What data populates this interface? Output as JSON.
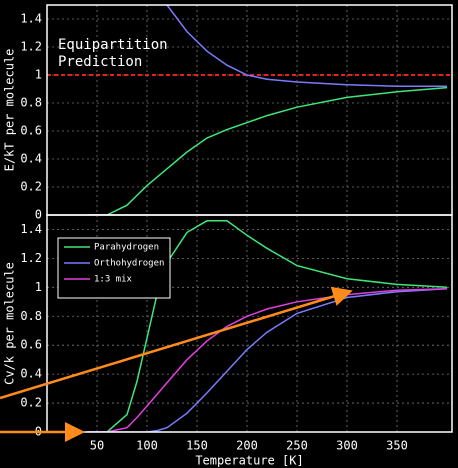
{
  "chart_data": [
    {
      "type": "line",
      "ylabel": "E/kT per molecule",
      "annotation": [
        "Equipartition",
        "Prediction"
      ],
      "annotation_color": "#e8321e",
      "reference_line": 1,
      "reference_color": "#e8201c",
      "x": [
        40,
        60,
        80,
        90,
        100,
        110,
        120,
        140,
        160,
        180,
        200,
        220,
        250,
        300,
        350,
        400
      ],
      "series": [
        {
          "color": "#3ee67a",
          "values": [
            0,
            0,
            0.07,
            0.14,
            0.21,
            0.27,
            0.33,
            0.45,
            0.55,
            0.61,
            0.66,
            0.71,
            0.77,
            0.84,
            0.88,
            0.91
          ]
        },
        {
          "color": "#7b7bff",
          "values": [
            null,
            null,
            null,
            null,
            null,
            null,
            1.5,
            1.31,
            1.17,
            1.07,
            1.0,
            0.97,
            0.95,
            0.93,
            0.92,
            0.92
          ]
        }
      ],
      "xlim": [
        0,
        405
      ],
      "xticks": [
        50,
        100,
        150,
        200,
        250,
        300,
        350
      ],
      "ylim": [
        0,
        1.5
      ],
      "yticks": [
        0,
        0.2,
        0.4,
        0.6,
        0.8,
        1,
        1.2,
        1.4
      ],
      "grid": true
    },
    {
      "type": "line",
      "ylabel": "Cv/k per molecule",
      "xlabel": "Temperature [K]",
      "x": [
        40,
        60,
        80,
        90,
        100,
        110,
        120,
        140,
        160,
        180,
        200,
        220,
        250,
        300,
        350,
        400
      ],
      "series": [
        {
          "name": "Parahydrogen",
          "color": "#3ee67a",
          "values": [
            0,
            0,
            0.12,
            0.35,
            0.65,
            0.95,
            1.17,
            1.38,
            1.46,
            1.46,
            1.36,
            1.27,
            1.15,
            1.06,
            1.02,
            1.0
          ]
        },
        {
          "name": "Orthohydrogen",
          "color": "#7b7bff",
          "values": [
            0,
            0,
            0,
            0,
            0,
            0.01,
            0.03,
            0.13,
            0.27,
            0.42,
            0.57,
            0.69,
            0.82,
            0.93,
            0.97,
            0.99
          ]
        },
        {
          "name": "1:3 mix",
          "color": "#e040e0",
          "values": [
            0,
            0,
            0.03,
            0.1,
            0.18,
            0.26,
            0.34,
            0.5,
            0.63,
            0.73,
            0.8,
            0.85,
            0.9,
            0.95,
            0.98,
            0.99
          ]
        }
      ],
      "xlim": [
        0,
        405
      ],
      "xticks": [
        50,
        100,
        150,
        200,
        250,
        300,
        350
      ],
      "ylim": [
        0,
        1.5
      ],
      "yticks": [
        0,
        0.2,
        0.4,
        0.6,
        0.8,
        1,
        1.2,
        1.4
      ],
      "grid": true,
      "legend": "upper left"
    }
  ]
}
